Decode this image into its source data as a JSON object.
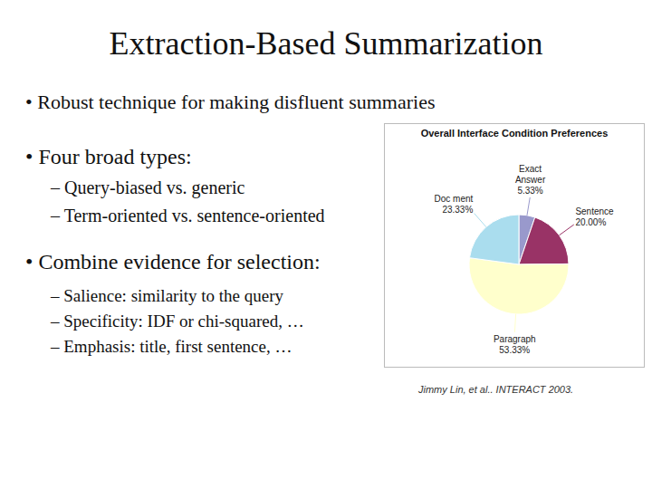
{
  "chart_data": {
    "type": "pie",
    "title": "Overall Interface Condition Preferences",
    "categories": [
      "Exact\nAnswer",
      "Sentence",
      "Paragraph",
      "Doc ment"
    ],
    "values": [
      5.33,
      20.0,
      53.33,
      23.33
    ],
    "value_labels": [
      "5.33%",
      "20.00%",
      "53.33%",
      "23.33%"
    ],
    "colors": [
      "#9999cc",
      "#993366",
      "#ffffcc",
      "#aaddee"
    ],
    "data_labels": true,
    "annotations": [
      "Extraction-Based Summarization",
      "• Robust technique for making disfluent summaries",
      "• Four broad types:",
      "– Query-biased vs. generic",
      "– Term-oriented vs. sentence-oriented",
      "• Combine evidence for selection:",
      "– Salience: similarity to the query",
      "– Specificity: IDF or chi-squared, …",
      "– Emphasis: title, first sentence, …",
      "Jimmy Lin, et al.. INTERACT 2003."
    ]
  }
}
